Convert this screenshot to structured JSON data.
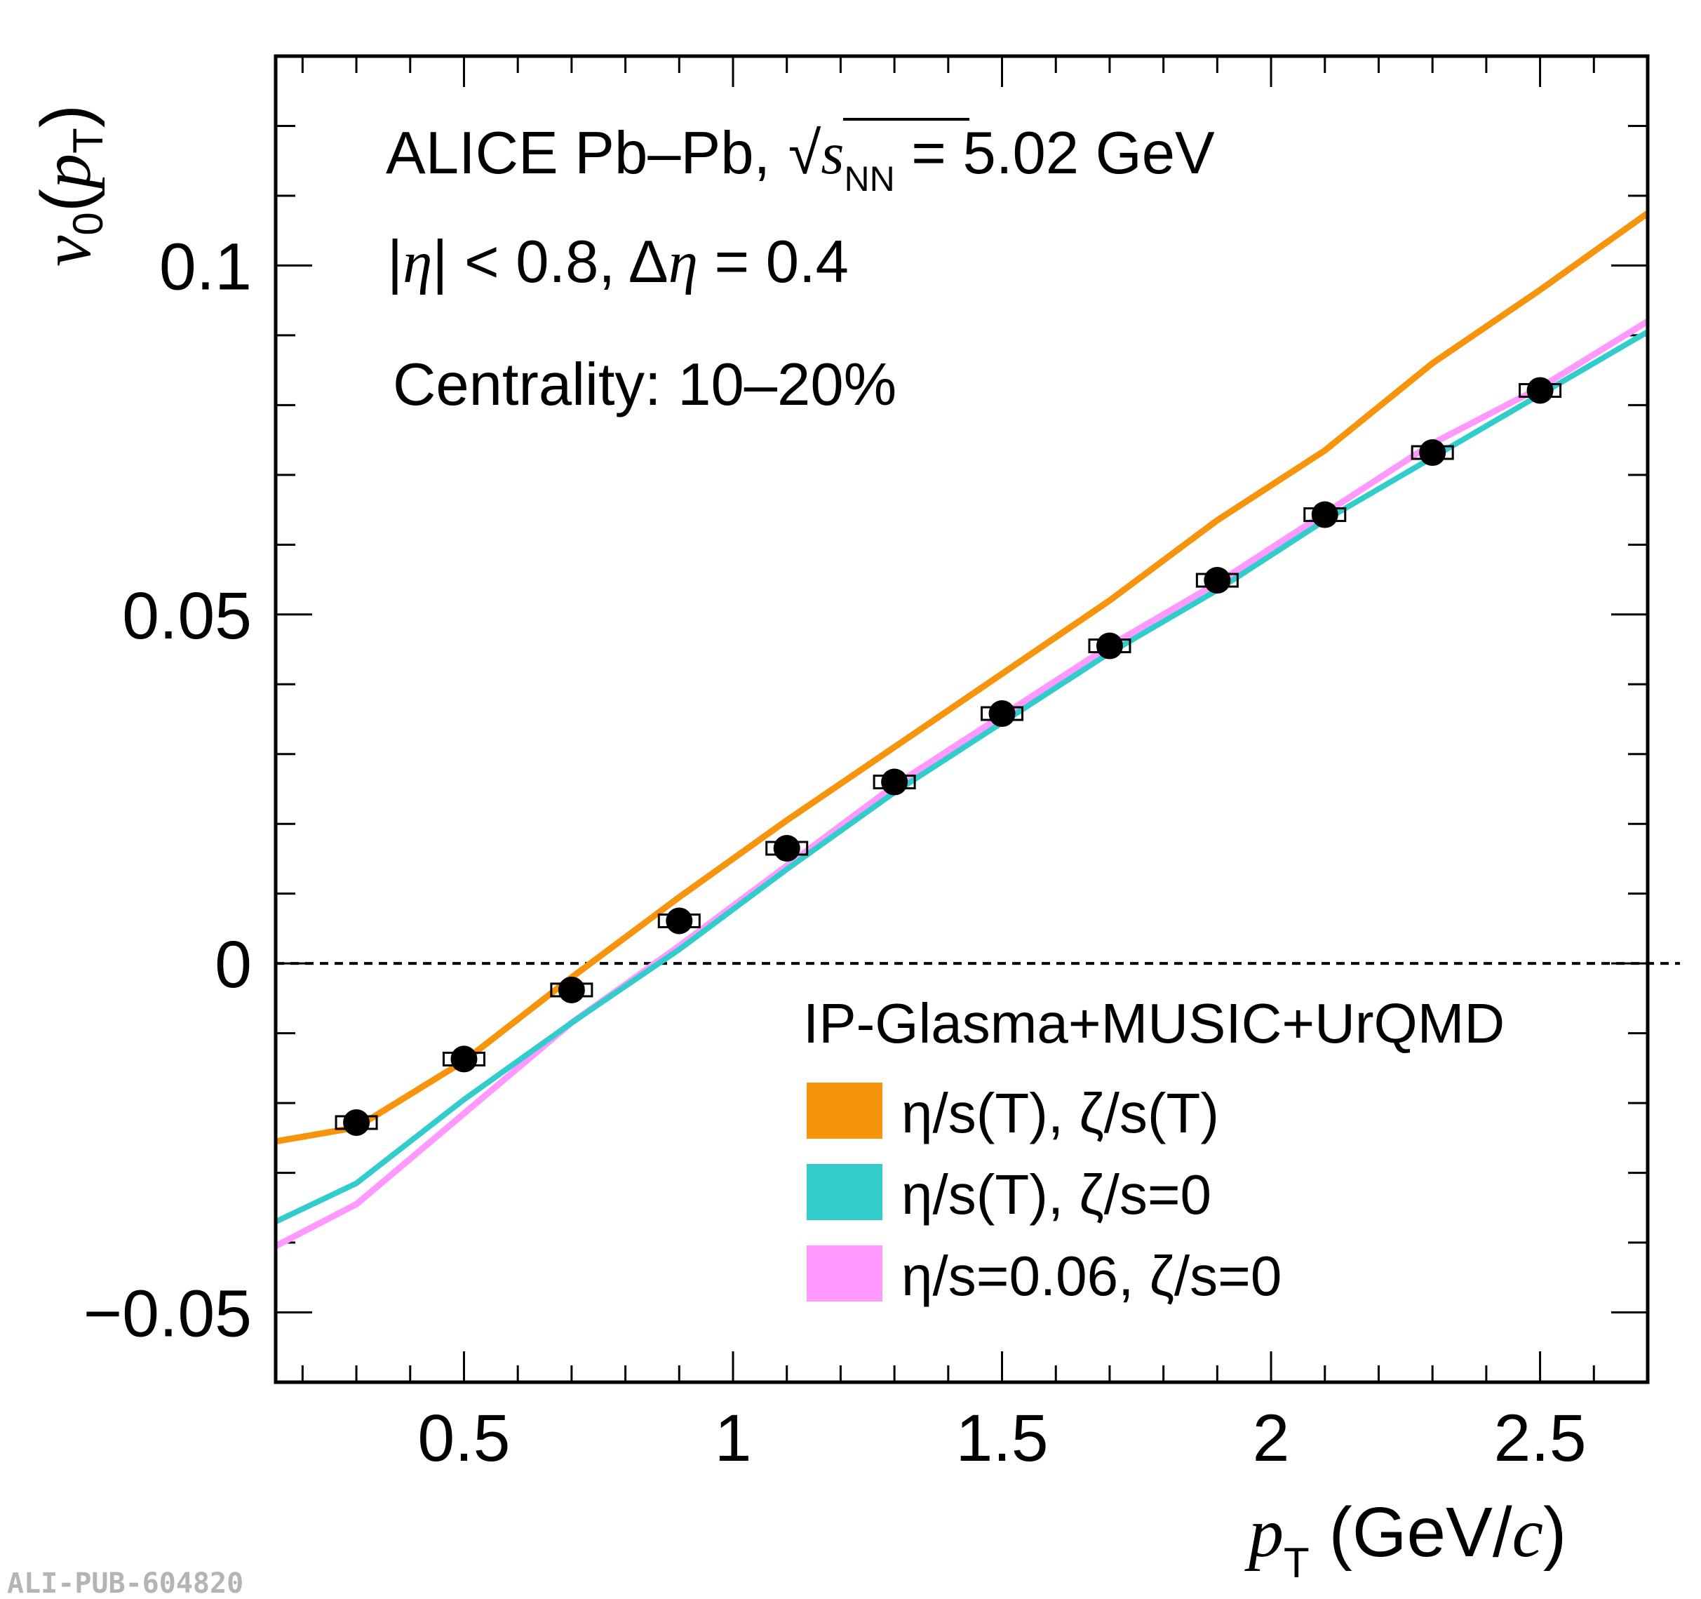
{
  "chart_data": {
    "type": "line",
    "x_axis": {
      "range": [
        0.15,
        2.7
      ],
      "ticks": [
        "0.5",
        "1",
        "1.5",
        "2",
        "2.5"
      ],
      "tick_values": [
        0.5,
        1.0,
        1.5,
        2.0,
        2.5
      ]
    },
    "y_axis": {
      "range": [
        -0.06,
        0.13
      ],
      "ticks": [
        "−0.05",
        "0",
        "0.05",
        "0.1"
      ],
      "tick_values": [
        -0.05,
        0.0,
        0.05,
        0.1
      ]
    },
    "reference_line": {
      "y": 0,
      "style": "dashed"
    },
    "annotations": {
      "experiment_pre": "ALICE Pb–Pb, ",
      "s_symbol": "s",
      "nn_sub": "NN",
      "energy": " = 5.02 GeV",
      "eta_cut_bar_l": "|",
      "eta_sym": "η",
      "eta_cut_bar_r": "| < 0.8, ",
      "delta_sym": "Δ",
      "delta_val": " = 0.4",
      "centrality": "Centrality: 10–20%"
    },
    "legend": {
      "title": "IP-Glasma+MUSIC+UrQMD",
      "placement": "lower-right",
      "entries": [
        {
          "label": "η/s(T), ζ/s(T)",
          "color": "#f7940d"
        },
        {
          "label": "η/s(T), ζ/s=0",
          "color": "#33cccc"
        },
        {
          "label": "η/s=0.06, ζ/s=0",
          "color": "#ff99ff"
        }
      ]
    },
    "series": [
      {
        "name": "η/s(T), ζ/s(T)",
        "kind": "model-curve",
        "color": "#f7940d",
        "x": [
          0.15,
          0.3,
          0.5,
          0.7,
          0.9,
          1.1,
          1.3,
          1.5,
          1.7,
          1.9,
          2.1,
          2.3,
          2.5,
          2.7
        ],
        "y": [
          -0.0255,
          -0.0235,
          -0.014,
          -0.002,
          0.0095,
          0.0205,
          0.031,
          0.0415,
          0.052,
          0.0635,
          0.0735,
          0.086,
          0.0965,
          0.1075
        ]
      },
      {
        "name": "η/s(T), ζ/s=0",
        "kind": "model-curve",
        "color": "#33cccc",
        "x": [
          0.15,
          0.3,
          0.5,
          0.7,
          0.9,
          1.1,
          1.3,
          1.5,
          1.7,
          1.9,
          2.1,
          2.3,
          2.5,
          2.7
        ],
        "y": [
          -0.037,
          -0.0315,
          -0.0195,
          -0.0085,
          0.002,
          0.0135,
          0.0245,
          0.0345,
          0.0445,
          0.0535,
          0.0635,
          0.0725,
          0.0815,
          0.0905
        ]
      },
      {
        "name": "η/s=0.06, ζ/s=0",
        "kind": "model-curve",
        "color": "#ff99ff",
        "x": [
          0.15,
          0.3,
          0.5,
          0.7,
          0.9,
          1.1,
          1.3,
          1.5,
          1.7,
          1.9,
          2.1,
          2.3,
          2.5,
          2.7
        ],
        "y": [
          -0.0405,
          -0.0345,
          -0.0215,
          -0.0085,
          0.0025,
          0.014,
          0.0255,
          0.0355,
          0.0455,
          0.0545,
          0.0645,
          0.0745,
          0.0825,
          0.092
        ]
      },
      {
        "kind": "data-points",
        "color": "#000000",
        "x": [
          0.3,
          0.5,
          0.7,
          0.9,
          1.1,
          1.3,
          1.5,
          1.7,
          1.9,
          2.1,
          2.3,
          2.5
        ],
        "y": [
          -0.0228,
          -0.0137,
          -0.0038,
          0.0061,
          0.0165,
          0.026,
          0.0358,
          0.0455,
          0.0549,
          0.0643,
          0.0732,
          0.0821
        ]
      }
    ]
  },
  "axis_labels": {
    "y_main": "v",
    "y_sub": "0",
    "y_paren_open": "(",
    "y_p": "p",
    "y_p_sub": "T",
    "y_paren_close": ")",
    "x_p": "p",
    "x_p_sub": "T",
    "x_unit_open": " (GeV/",
    "x_unit_c": "c",
    "x_unit_close": ")"
  },
  "watermark": "ALI-PUB-604820"
}
